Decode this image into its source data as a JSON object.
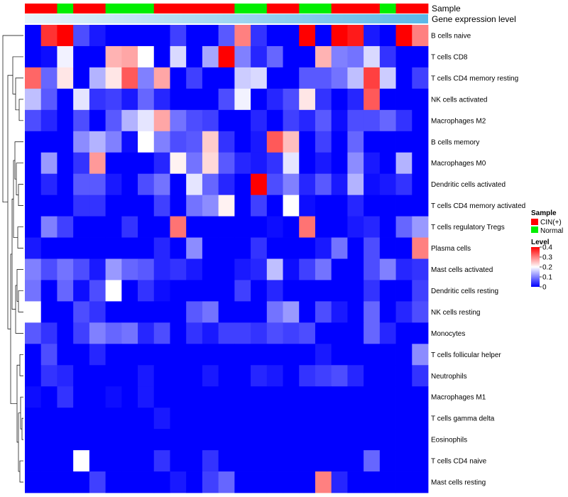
{
  "chart_data": {
    "type": "heatmap",
    "annotation_rows": {
      "sample_label": "Sample",
      "expression_label": "Gene expression level"
    },
    "row_labels": [
      "B cells naive",
      "T cells CD8",
      "T cells CD4 memory resting",
      "NK cells activated",
      "Macrophages M2",
      "B cells memory",
      "Macrophages M0",
      "Dendritic cells activated",
      "T cells CD4 memory activated",
      "T cells regulatory  Tregs",
      "Plasma cells",
      "Mast cells activated",
      "Dendritic cells resting",
      "NK cells resting",
      "Monocytes",
      "T cells follicular helper",
      "Neutrophils",
      "Macrophages M1",
      "T cells gamma delta",
      "Eosinophils",
      "T cells CD4 naive",
      "Mast cells resting"
    ],
    "sample_groups": [
      "CIN",
      "CIN",
      "Normal",
      "CIN",
      "CIN",
      "Normal",
      "Normal",
      "Normal",
      "CIN",
      "CIN",
      "CIN",
      "CIN",
      "CIN",
      "Normal",
      "Normal",
      "CIN",
      "CIN",
      "Normal",
      "Normal",
      "CIN",
      "CIN",
      "CIN",
      "Normal",
      "CIN",
      "CIN"
    ],
    "values": [
      [
        0.0,
        0.36,
        0.4,
        0.06,
        0.02,
        0.0,
        0.0,
        0.0,
        0.0,
        0.05,
        0.0,
        0.0,
        0.07,
        0.3,
        0.04,
        0.0,
        0.0,
        0.4,
        0.0,
        0.4,
        0.38,
        0.02,
        0.0,
        0.4,
        0.3
      ],
      [
        0.0,
        0.01,
        0.19,
        0.0,
        0.0,
        0.26,
        0.27,
        0.2,
        0.0,
        0.17,
        0.0,
        0.13,
        0.4,
        0.1,
        0.03,
        0.08,
        0.0,
        0.0,
        0.26,
        0.1,
        0.09,
        0.17,
        0.04,
        0.0,
        0.0
      ],
      [
        0.32,
        0.08,
        0.22,
        0.0,
        0.14,
        0.22,
        0.33,
        0.1,
        0.27,
        0.0,
        0.05,
        0.0,
        0.0,
        0.16,
        0.17,
        0.0,
        0.0,
        0.07,
        0.07,
        0.09,
        0.15,
        0.35,
        0.16,
        0.0,
        0.05
      ],
      [
        0.15,
        0.07,
        0.0,
        0.18,
        0.04,
        0.05,
        0.02,
        0.08,
        0.03,
        0.0,
        0.0,
        0.0,
        0.06,
        0.19,
        0.0,
        0.03,
        0.06,
        0.22,
        0.04,
        0.0,
        0.03,
        0.33,
        0.0,
        0.0,
        0.0
      ],
      [
        0.06,
        0.03,
        0.0,
        0.06,
        0.0,
        0.07,
        0.14,
        0.18,
        0.27,
        0.09,
        0.06,
        0.05,
        0.0,
        0.0,
        0.03,
        0.0,
        0.05,
        0.03,
        0.07,
        0.01,
        0.06,
        0.06,
        0.08,
        0.04,
        0.0
      ],
      [
        0.0,
        0.0,
        0.0,
        0.11,
        0.14,
        0.1,
        0.01,
        0.2,
        0.1,
        0.06,
        0.07,
        0.24,
        0.04,
        0.0,
        0.02,
        0.33,
        0.25,
        0.0,
        0.05,
        0.0,
        0.08,
        0.0,
        0.0,
        0.0,
        0.0
      ],
      [
        0.0,
        0.12,
        0.0,
        0.04,
        0.28,
        0.0,
        0.0,
        0.0,
        0.03,
        0.21,
        0.09,
        0.23,
        0.07,
        0.03,
        0.02,
        0.04,
        0.18,
        0.0,
        0.02,
        0.0,
        0.11,
        0.02,
        0.0,
        0.14,
        0.0
      ],
      [
        0.0,
        0.03,
        0.0,
        0.07,
        0.07,
        0.02,
        0.0,
        0.06,
        0.09,
        0.0,
        0.18,
        0.08,
        0.03,
        0.0,
        0.4,
        0.06,
        0.1,
        0.03,
        0.07,
        0.02,
        0.14,
        0.01,
        0.02,
        0.04,
        0.0
      ],
      [
        0.0,
        0.0,
        0.0,
        0.04,
        0.04,
        0.0,
        0.0,
        0.0,
        0.05,
        0.0,
        0.09,
        0.11,
        0.21,
        0.0,
        0.05,
        0.0,
        0.2,
        0.01,
        0.0,
        0.0,
        0.03,
        0.0,
        0.0,
        0.0,
        0.0
      ],
      [
        0.0,
        0.1,
        0.05,
        0.0,
        0.0,
        0.0,
        0.04,
        0.0,
        0.0,
        0.31,
        0.0,
        0.0,
        0.0,
        0.0,
        0.0,
        0.01,
        0.0,
        0.31,
        0.0,
        0.0,
        0.02,
        0.03,
        0.0,
        0.08,
        0.12
      ],
      [
        0.02,
        0.0,
        0.0,
        0.0,
        0.0,
        0.0,
        0.0,
        0.0,
        0.03,
        0.0,
        0.11,
        0.0,
        0.0,
        0.0,
        0.04,
        0.0,
        0.0,
        0.0,
        0.02,
        0.09,
        0.0,
        0.06,
        0.0,
        0.0,
        0.3
      ],
      [
        0.1,
        0.06,
        0.09,
        0.06,
        0.02,
        0.12,
        0.08,
        0.07,
        0.03,
        0.04,
        0.02,
        0.0,
        0.0,
        0.02,
        0.03,
        0.15,
        0.01,
        0.05,
        0.09,
        0.0,
        0.0,
        0.06,
        0.1,
        0.03,
        0.04
      ],
      [
        0.09,
        0.0,
        0.08,
        0.01,
        0.06,
        0.2,
        0.0,
        0.04,
        0.01,
        0.0,
        0.0,
        0.0,
        0.0,
        0.05,
        0.0,
        0.03,
        0.0,
        0.0,
        0.0,
        0.0,
        0.0,
        0.04,
        0.0,
        0.0,
        0.05
      ],
      [
        0.2,
        0.0,
        0.0,
        0.06,
        0.04,
        0.0,
        0.0,
        0.0,
        0.0,
        0.0,
        0.07,
        0.09,
        0.0,
        0.0,
        0.0,
        0.09,
        0.12,
        0.0,
        0.06,
        0.02,
        0.0,
        0.08,
        0.0,
        0.03,
        0.06
      ],
      [
        0.07,
        0.04,
        0.0,
        0.05,
        0.1,
        0.08,
        0.09,
        0.03,
        0.06,
        0.0,
        0.04,
        0.02,
        0.05,
        0.05,
        0.04,
        0.06,
        0.05,
        0.06,
        0.0,
        0.0,
        0.0,
        0.08,
        0.03,
        0.0,
        0.0
      ],
      [
        0.0,
        0.06,
        0.0,
        0.0,
        0.03,
        0.0,
        0.0,
        0.0,
        0.0,
        0.0,
        0.0,
        0.0,
        0.0,
        0.0,
        0.0,
        0.0,
        0.0,
        0.0,
        0.02,
        0.0,
        0.0,
        0.0,
        0.0,
        0.0,
        0.11
      ],
      [
        0.0,
        0.04,
        0.03,
        0.0,
        0.0,
        0.0,
        0.0,
        0.02,
        0.0,
        0.0,
        0.0,
        0.02,
        0.0,
        0.0,
        0.03,
        0.02,
        0.0,
        0.04,
        0.05,
        0.06,
        0.03,
        0.0,
        0.0,
        0.0,
        0.04
      ],
      [
        0.01,
        0.0,
        0.04,
        0.0,
        0.0,
        0.01,
        0.0,
        0.02,
        0.0,
        0.0,
        0.0,
        0.0,
        0.0,
        0.0,
        0.0,
        0.0,
        0.0,
        0.0,
        0.0,
        0.0,
        0.0,
        0.0,
        0.0,
        0.0,
        0.0
      ],
      [
        0.0,
        0.0,
        0.0,
        0.0,
        0.0,
        0.0,
        0.0,
        0.0,
        0.02,
        0.0,
        0.0,
        0.0,
        0.0,
        0.0,
        0.0,
        0.0,
        0.0,
        0.0,
        0.0,
        0.0,
        0.0,
        0.0,
        0.0,
        0.0,
        0.0
      ],
      [
        0.0,
        0.0,
        0.0,
        0.0,
        0.0,
        0.0,
        0.0,
        0.0,
        0.0,
        0.0,
        0.0,
        0.0,
        0.0,
        0.0,
        0.0,
        0.0,
        0.0,
        0.0,
        0.0,
        0.0,
        0.0,
        0.0,
        0.0,
        0.0,
        0.0
      ],
      [
        0.0,
        0.0,
        0.0,
        0.2,
        0.0,
        0.0,
        0.0,
        0.0,
        0.04,
        0.0,
        0.0,
        0.04,
        0.0,
        0.0,
        0.0,
        0.0,
        0.0,
        0.0,
        0.0,
        0.0,
        0.0,
        0.08,
        0.0,
        0.0,
        0.0
      ],
      [
        0.0,
        0.0,
        0.0,
        0.0,
        0.05,
        0.0,
        0.0,
        0.0,
        0.0,
        0.02,
        0.0,
        0.05,
        0.08,
        0.0,
        0.0,
        0.0,
        0.0,
        0.0,
        0.3,
        0.03,
        0.0,
        0.0,
        0.0,
        0.0,
        0.0
      ]
    ],
    "color_scale": {
      "min": 0,
      "max": 0.4,
      "low": "#0000FF",
      "mid": "#FFFFFF",
      "high": "#FF0000",
      "mid_value": 0.2
    },
    "legend": {
      "sample_title": "Sample",
      "sample_entries": [
        {
          "label": "CIN(+)",
          "color": "#FF0000"
        },
        {
          "label": "Normal",
          "color": "#00EE00"
        }
      ],
      "level_title": "Level",
      "level_ticks": [
        "0.4",
        "0.3",
        "0.2",
        "0.1",
        "0"
      ],
      "level_tick_values": [
        0.4,
        0.3,
        0.2,
        0.1,
        0
      ]
    },
    "expression_gradient": {
      "start": "#E8F4FB",
      "end": "#5BB8E8"
    },
    "dendrogram": "hierarchical clustering of rows (left)"
  }
}
